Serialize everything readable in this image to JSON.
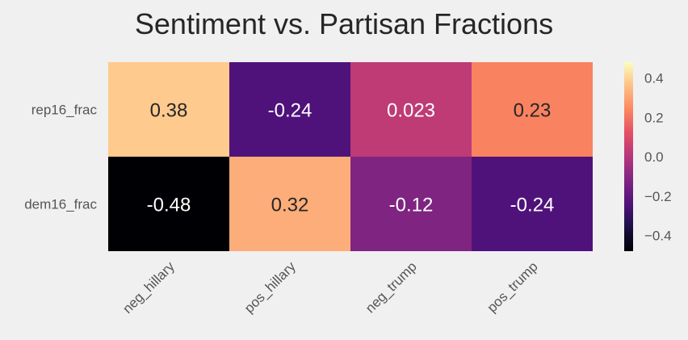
{
  "chart_data": {
    "type": "heatmap",
    "title": "Sentiment vs. Partisan Fractions",
    "rows": [
      "rep16_frac",
      "dem16_frac"
    ],
    "columns": [
      "neg_hillary",
      "pos_hillary",
      "neg_trump",
      "pos_trump"
    ],
    "values": [
      [
        0.38,
        -0.24,
        0.023,
        0.23
      ],
      [
        -0.48,
        0.32,
        -0.12,
        -0.24
      ]
    ],
    "cell_labels": [
      [
        "0.38",
        "-0.24",
        "0.023",
        "0.23"
      ],
      [
        "-0.48",
        "0.32",
        "-0.12",
        "-0.24"
      ]
    ],
    "colormap": "magma",
    "vmin": -0.48,
    "vmax": 0.48,
    "colorbar": {
      "ticks": [
        -0.4,
        -0.2,
        0.0,
        0.2,
        0.4
      ],
      "tick_labels": [
        "−0.4",
        "−0.2",
        "0.0",
        "0.2",
        "0.4"
      ]
    },
    "background_color": "#f0f0f0",
    "label_color": "#555555",
    "title_color": "#262626",
    "grid": false
  }
}
